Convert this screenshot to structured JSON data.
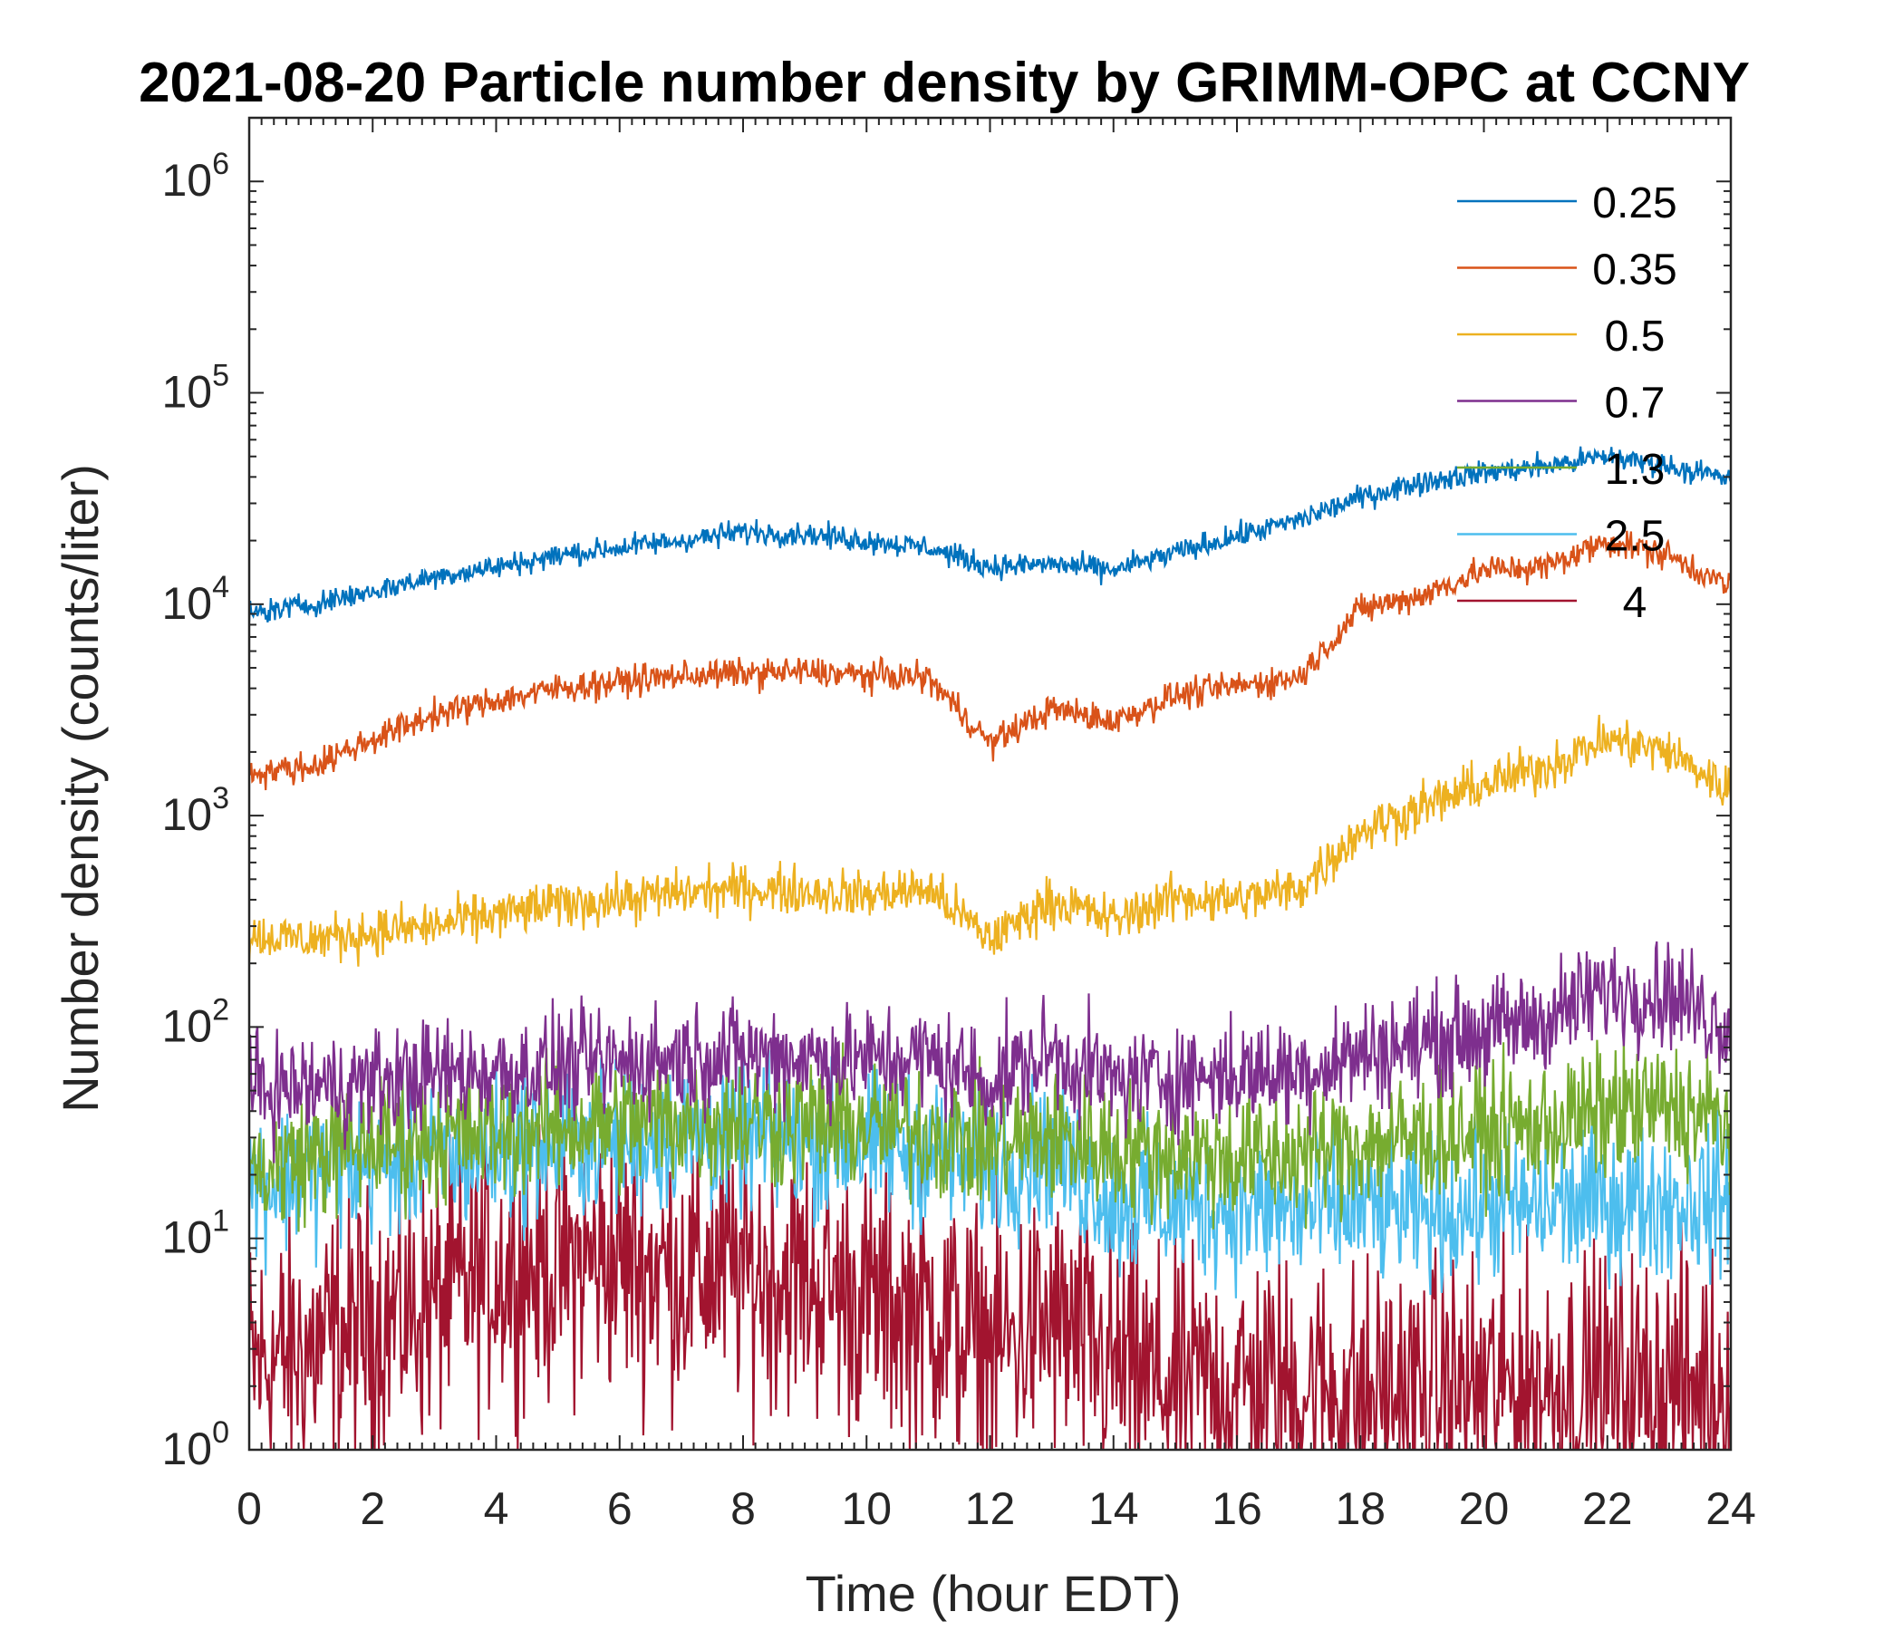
{
  "chart_data": {
    "type": "line",
    "title": "2021-08-20 Particle number density by GRIMM-OPC at CCNY",
    "xlabel": "Time (hour EDT)",
    "ylabel": "Number density (counts/liter)",
    "xlim": [
      0,
      24
    ],
    "ylim": [
      1,
      2000000
    ],
    "yscale": "log",
    "x_ticks": [
      0,
      2,
      4,
      6,
      8,
      10,
      12,
      14,
      16,
      18,
      20,
      22,
      24
    ],
    "x_tick_labels": [
      "0",
      "2",
      "4",
      "6",
      "8",
      "10",
      "12",
      "14",
      "16",
      "18",
      "20",
      "22",
      "24"
    ],
    "y_ticks": [
      1,
      10,
      100,
      1000,
      10000,
      100000,
      1000000
    ],
    "y_tick_labels": [
      {
        "base": "10",
        "exp": "0"
      },
      {
        "base": "10",
        "exp": "1"
      },
      {
        "base": "10",
        "exp": "2"
      },
      {
        "base": "10",
        "exp": "3"
      },
      {
        "base": "10",
        "exp": "4"
      },
      {
        "base": "10",
        "exp": "5"
      },
      {
        "base": "10",
        "exp": "6"
      }
    ],
    "legend_position": "top-right",
    "x": [
      0,
      1,
      2,
      3,
      4,
      5,
      6,
      7,
      8,
      9,
      10,
      11,
      12,
      13,
      14,
      15,
      16,
      17,
      18,
      19,
      20,
      21,
      22,
      23,
      24
    ],
    "series": [
      {
        "name": "0.25",
        "color": "#0072BD",
        "noise": 0.04,
        "values": [
          9000,
          10000,
          11500,
          13500,
          15000,
          17000,
          18500,
          20000,
          22000,
          21500,
          20000,
          18500,
          15000,
          15500,
          14500,
          17500,
          21000,
          25000,
          32000,
          38000,
          42000,
          45000,
          50000,
          45000,
          39000
        ]
      },
      {
        "name": "0.35",
        "color": "#D95319",
        "noise": 0.05,
        "values": [
          1600,
          1700,
          2300,
          3000,
          3500,
          4000,
          4300,
          4600,
          4700,
          4800,
          4600,
          4500,
          2200,
          3200,
          2800,
          3700,
          4100,
          4500,
          9500,
          11000,
          14500,
          15000,
          20000,
          17000,
          12000
        ]
      },
      {
        "name": "0.5",
        "color": "#EDB120",
        "noise": 0.08,
        "values": [
          270,
          260,
          280,
          300,
          340,
          380,
          400,
          430,
          450,
          440,
          420,
          450,
          260,
          400,
          320,
          410,
          400,
          450,
          850,
          1100,
          1400,
          1700,
          2300,
          2000,
          1300
        ]
      },
      {
        "name": "0.7",
        "color": "#7E2F8E",
        "noise": 0.18,
        "values": [
          50,
          52,
          55,
          60,
          62,
          65,
          68,
          72,
          75,
          72,
          70,
          72,
          55,
          75,
          55,
          58,
          60,
          62,
          75,
          85,
          95,
          110,
          150,
          145,
          100
        ]
      },
      {
        "name": "1.3",
        "color": "#77AC30",
        "noise": 0.22,
        "values": [
          20,
          25,
          28,
          30,
          32,
          34,
          35,
          36,
          36,
          35,
          34,
          32,
          28,
          30,
          27,
          25,
          24,
          25,
          28,
          30,
          32,
          34,
          40,
          42,
          35
        ]
      },
      {
        "name": "2.5",
        "color": "#4DBEEE",
        "noise": 0.25,
        "values": [
          18,
          20,
          22,
          24,
          26,
          28,
          29,
          30,
          30,
          29,
          27,
          26,
          22,
          25,
          15,
          14,
          14,
          13,
          14,
          13,
          14,
          14,
          15,
          15,
          15
        ]
      },
      {
        "name": "4",
        "color": "#A2142F",
        "noise": 0.45,
        "values": [
          2.5,
          3,
          4,
          5,
          7,
          7.5,
          8,
          7,
          7,
          6.5,
          5,
          4.5,
          3,
          4,
          2.5,
          2,
          2,
          2,
          1.8,
          1.8,
          2,
          2,
          2,
          2,
          2
        ]
      }
    ]
  }
}
